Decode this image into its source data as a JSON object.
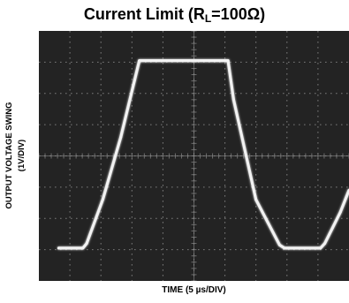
{
  "title": {
    "prefix": "Current Limit (R",
    "subscript": "L",
    "suffix": "=100Ω)"
  },
  "axes": {
    "ylabel_line1": "OUTPUT VOLTAGE SWING",
    "ylabel_line2": "(1V/DIV)",
    "xlabel": "TIME (5 µs/DIV)"
  },
  "chart_data": {
    "type": "line",
    "title": "Current Limit (RL=100Ω)",
    "xlabel": "TIME (5 µs/DIV)",
    "ylabel": "OUTPUT VOLTAGE SWING (1V/DIV)",
    "x_unit": "µs",
    "y_unit": "V",
    "x_per_div": 5,
    "y_per_div": 1,
    "xlim": [
      0,
      50
    ],
    "ylim": [
      0,
      8
    ],
    "grid": true,
    "background": "#232323",
    "trace_color": "#f2f2f2",
    "grid_color": "#8c8c8c",
    "series": [
      {
        "x": [
          3.2,
          7.1,
          7.7,
          10.3,
          13.2,
          16.2,
          30.5,
          31.4,
          35.0,
          38.8,
          39.6,
          45.4,
          46.1,
          48.6,
          50.0
        ],
        "y": [
          1.05,
          1.05,
          1.2,
          2.6,
          4.6,
          7.05,
          7.05,
          5.8,
          2.6,
          1.15,
          1.05,
          1.05,
          1.2,
          2.2,
          2.9
        ]
      }
    ]
  }
}
